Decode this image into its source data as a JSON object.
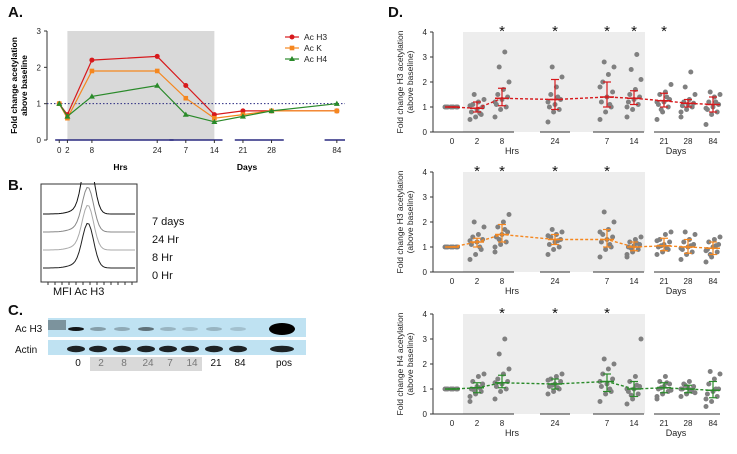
{
  "panels": {
    "a": "A.",
    "b": "B.",
    "c": "C.",
    "d": "D."
  },
  "colors": {
    "h3": "#d7191c",
    "k": "#f5871f",
    "h4": "#2a8a2a",
    "dots": "#808080",
    "shade": "#d9d9d9",
    "shade_light": "#ededed",
    "blot_bg": "#bfe2f2"
  },
  "chart_data": [
    {
      "type": "line",
      "panel": "A",
      "ylabel": "Fold change acetylation above baseline",
      "ylim": [
        0,
        3
      ],
      "yticks": [
        0,
        1,
        2,
        3
      ],
      "x_tick_labels": [
        "0",
        "2",
        "8",
        "24",
        "7",
        "14",
        "21",
        "28",
        "84"
      ],
      "x_positions": [
        0,
        2,
        8,
        24,
        31,
        38,
        45,
        52,
        68
      ],
      "group_labels": [
        "Hrs",
        "Days"
      ],
      "baseline": 1,
      "series": [
        {
          "name": "Ac H3",
          "values": [
            1.0,
            0.7,
            2.2,
            2.3,
            1.5,
            0.7,
            0.8,
            0.8,
            0.8
          ],
          "color": "#d7191c"
        },
        {
          "name": "Ac K",
          "values": [
            1.0,
            0.6,
            1.9,
            1.9,
            1.15,
            0.6,
            0.7,
            0.8,
            0.8
          ],
          "color": "#f5871f"
        },
        {
          "name": "Ac H4",
          "values": [
            1.0,
            0.65,
            1.2,
            1.5,
            0.7,
            0.5,
            0.65,
            0.8,
            1.0
          ],
          "color": "#2a8a2a"
        }
      ]
    },
    {
      "type": "scatter",
      "panel": "D-top",
      "ylabel": "Fold change H3 acetylation (above baseline)",
      "ylim": [
        0,
        4
      ],
      "yticks": [
        0,
        1,
        2,
        3,
        4
      ],
      "categories": [
        "0",
        "2",
        "8",
        "24",
        "7",
        "14",
        "21",
        "28",
        "84"
      ],
      "group_labels": [
        "Hrs",
        "Days"
      ],
      "significant": [
        false,
        false,
        true,
        true,
        true,
        true,
        true,
        false,
        false
      ],
      "median": [
        1.0,
        0.95,
        1.35,
        1.3,
        1.4,
        1.35,
        1.25,
        1.15,
        1.1
      ],
      "q1": [
        1.0,
        0.8,
        1.05,
        0.9,
        1.0,
        1.1,
        1.0,
        1.0,
        0.8
      ],
      "q3": [
        1.0,
        1.2,
        1.75,
        2.1,
        2.0,
        1.65,
        1.55,
        1.3,
        1.4
      ],
      "points": [
        [
          1,
          1,
          1,
          1,
          1,
          1,
          1,
          1
        ],
        [
          0.5,
          0.6,
          0.7,
          0.8,
          0.9,
          1.0,
          1.1,
          1.2,
          1.3,
          1.5,
          0.75,
          1.05
        ],
        [
          0.6,
          0.9,
          1.0,
          1.1,
          1.3,
          1.4,
          1.5,
          1.7,
          2.0,
          2.6,
          3.2,
          1.2
        ],
        [
          0.4,
          0.8,
          0.9,
          1.0,
          1.1,
          1.3,
          1.5,
          1.8,
          2.2,
          2.6,
          1.4,
          1.2
        ],
        [
          0.5,
          0.8,
          1.0,
          1.2,
          1.4,
          1.6,
          2.0,
          2.3,
          2.6,
          2.8,
          1.1,
          1.8
        ],
        [
          0.6,
          0.9,
          1.1,
          1.2,
          1.3,
          1.4,
          1.5,
          1.7,
          2.1,
          2.5,
          3.1,
          1.0
        ],
        [
          0.5,
          0.8,
          1.0,
          1.1,
          1.2,
          1.3,
          1.5,
          1.6,
          1.9,
          0.9,
          1.4,
          1.2
        ],
        [
          0.6,
          0.9,
          1.0,
          1.05,
          1.1,
          1.15,
          1.2,
          1.3,
          1.5,
          1.8,
          2.4,
          0.8
        ],
        [
          0.3,
          0.7,
          0.8,
          0.9,
          1.0,
          1.1,
          1.2,
          1.4,
          1.5,
          1.6,
          1.2,
          0.95
        ]
      ]
    },
    {
      "type": "scatter",
      "panel": "D-middle",
      "ylabel": "Fold change H3 acetylation (above baseline)",
      "ylim": [
        0,
        4
      ],
      "yticks": [
        0,
        1,
        2,
        3,
        4
      ],
      "categories": [
        "0",
        "2",
        "8",
        "24",
        "7",
        "14",
        "21",
        "28",
        "84"
      ],
      "group_labels": [
        "Hrs",
        "Days"
      ],
      "significant": [
        false,
        true,
        true,
        true,
        true,
        false,
        false,
        false,
        false
      ],
      "median": [
        1.0,
        1.2,
        1.5,
        1.3,
        1.3,
        1.0,
        1.05,
        1.0,
        0.95
      ],
      "q1": [
        1.0,
        1.0,
        1.2,
        1.1,
        1.0,
        0.85,
        0.85,
        0.75,
        0.7
      ],
      "q3": [
        1.0,
        1.35,
        1.9,
        1.5,
        1.7,
        1.2,
        1.35,
        1.3,
        1.2
      ],
      "points": [
        [
          1,
          1,
          1,
          1,
          1,
          1,
          1,
          1
        ],
        [
          0.5,
          0.7,
          0.9,
          1.1,
          1.2,
          1.3,
          1.4,
          1.5,
          1.8,
          2.0,
          1.0,
          1.25
        ],
        [
          0.8,
          1.1,
          1.2,
          1.4,
          1.5,
          1.6,
          1.8,
          2.0,
          2.3,
          1.3,
          1.7,
          1.0
        ],
        [
          0.7,
          0.9,
          1.0,
          1.1,
          1.2,
          1.3,
          1.4,
          1.5,
          1.6,
          1.7,
          1.25,
          1.45
        ],
        [
          0.6,
          0.9,
          1.0,
          1.2,
          1.3,
          1.4,
          1.5,
          1.7,
          2.0,
          2.4,
          1.1,
          1.6
        ],
        [
          0.6,
          0.8,
          0.9,
          1.0,
          1.05,
          1.1,
          1.2,
          1.3,
          1.4,
          0.95,
          1.15,
          0.7
        ],
        [
          0.7,
          0.8,
          0.9,
          1.0,
          1.1,
          1.2,
          1.3,
          1.5,
          1.6,
          1.05,
          0.95,
          1.25
        ],
        [
          0.5,
          0.7,
          0.8,
          0.9,
          1.0,
          1.1,
          1.2,
          1.3,
          1.5,
          1.6,
          1.05,
          0.95
        ],
        [
          0.4,
          0.6,
          0.8,
          0.9,
          1.0,
          1.1,
          1.2,
          1.3,
          1.4,
          0.7,
          1.05,
          0.85
        ]
      ]
    },
    {
      "type": "scatter",
      "panel": "D-bottom",
      "ylabel": "Fold change H4 acetylation (above baseline)",
      "ylim": [
        0,
        4
      ],
      "yticks": [
        0,
        1,
        2,
        3,
        4
      ],
      "categories": [
        "0",
        "2",
        "8",
        "24",
        "7",
        "14",
        "21",
        "28",
        "84"
      ],
      "group_labels": [
        "Hrs",
        "Days"
      ],
      "significant": [
        false,
        false,
        true,
        true,
        true,
        false,
        false,
        false,
        false
      ],
      "median": [
        1.0,
        1.05,
        1.25,
        1.2,
        1.3,
        1.0,
        1.05,
        1.0,
        0.95
      ],
      "q1": [
        1.0,
        0.85,
        1.05,
        1.0,
        0.9,
        0.7,
        0.85,
        0.85,
        0.65
      ],
      "q3": [
        1.0,
        1.25,
        1.55,
        1.4,
        1.6,
        1.3,
        1.25,
        1.15,
        1.3
      ],
      "points": [
        [
          1,
          1,
          1,
          1,
          1,
          1,
          1,
          1
        ],
        [
          0.5,
          0.8,
          0.9,
          1.0,
          1.1,
          1.2,
          1.3,
          1.5,
          1.6,
          0.95,
          1.05,
          0.7
        ],
        [
          0.6,
          0.9,
          1.0,
          1.1,
          1.2,
          1.3,
          1.4,
          1.6,
          1.8,
          2.4,
          3.0,
          1.25
        ],
        [
          0.8,
          0.9,
          1.0,
          1.1,
          1.2,
          1.3,
          1.4,
          1.5,
          1.6,
          1.15,
          1.05,
          1.35
        ],
        [
          0.5,
          0.8,
          0.9,
          1.1,
          1.2,
          1.4,
          1.6,
          1.8,
          2.0,
          2.2,
          1.0,
          1.3
        ],
        [
          0.4,
          0.6,
          0.8,
          0.9,
          1.0,
          1.1,
          1.3,
          1.5,
          3.0,
          0.75,
          1.15,
          1.0
        ],
        [
          0.6,
          0.8,
          0.9,
          1.0,
          1.1,
          1.2,
          1.3,
          1.5,
          0.95,
          1.05,
          1.25,
          0.7
        ],
        [
          0.7,
          0.8,
          0.9,
          1.0,
          1.05,
          1.1,
          1.2,
          1.3,
          0.85,
          1.15,
          0.95,
          1.0
        ],
        [
          0.3,
          0.5,
          0.7,
          0.8,
          0.9,
          1.0,
          1.2,
          1.4,
          1.6,
          1.7,
          1.0,
          0.6
        ]
      ]
    }
  ],
  "flow": {
    "xlabel": "MFI Ac H3",
    "labels": [
      "7 days",
      "24 Hr",
      "8 Hr",
      "0 Hr"
    ]
  },
  "blot": {
    "row_labels": [
      "Ac H3",
      "Actin"
    ],
    "lane_labels": [
      "0",
      "2",
      "8",
      "24",
      "7",
      "14",
      "21",
      "84",
      "pos"
    ]
  }
}
